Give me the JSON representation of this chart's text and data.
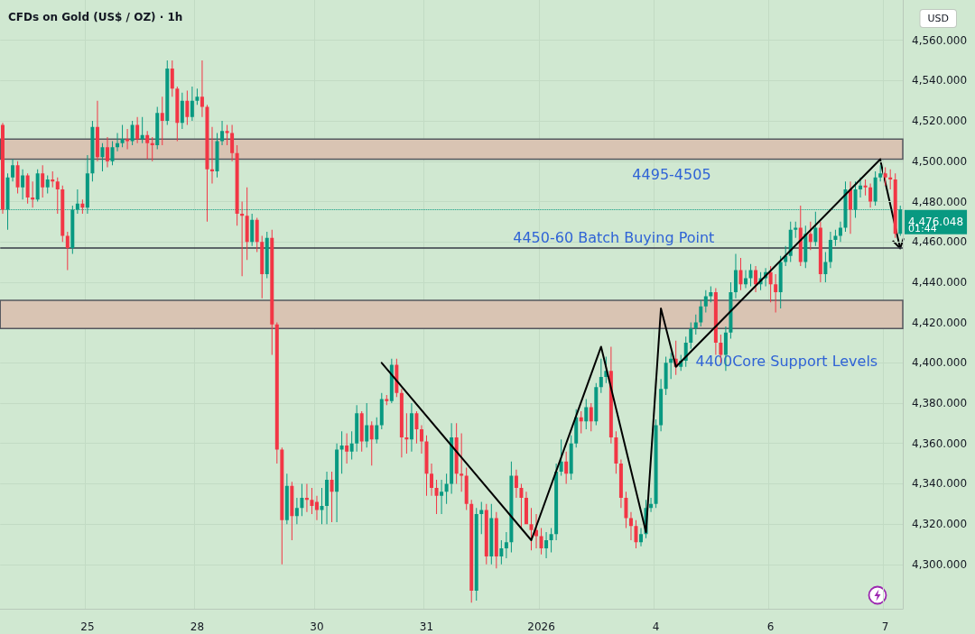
{
  "chart_data": {
    "type": "candlestick",
    "title": "CFDs on Gold (US$ / OZ) · 1h",
    "grid": true,
    "categories": [
      null,
      null,
      null,
      null,
      null,
      null,
      null,
      null,
      null,
      null,
      null,
      null,
      null,
      null,
      null,
      null,
      null,
      "25",
      null,
      null,
      null,
      null,
      null,
      null,
      null,
      null,
      null,
      null,
      null,
      null,
      null,
      null,
      null,
      null,
      null,
      null,
      null,
      null,
      null,
      "28",
      null,
      null,
      null,
      null,
      null,
      null,
      null,
      null,
      null,
      null,
      null,
      null,
      null,
      null,
      null,
      null,
      null,
      null,
      null,
      null,
      null,
      null,
      null,
      "30",
      null,
      null,
      null,
      null,
      null,
      null,
      null,
      null,
      null,
      null,
      null,
      null,
      null,
      null,
      null,
      null,
      null,
      null,
      null,
      null,
      null,
      "31",
      null,
      null,
      null,
      null,
      null,
      null,
      null,
      null,
      null,
      null,
      null,
      null,
      null,
      null,
      null,
      null,
      null,
      null,
      null,
      null,
      null,
      null,
      "2026",
      null,
      null,
      null,
      null,
      null,
      null,
      null,
      null,
      null,
      null,
      null,
      null,
      null,
      null,
      null,
      null,
      null,
      null,
      null,
      null,
      null,
      null,
      "4",
      null,
      null,
      null,
      null,
      null,
      null,
      null,
      null,
      null,
      null,
      null,
      null,
      null,
      null,
      null,
      null,
      null,
      null,
      null,
      null,
      null,
      null,
      "6",
      null,
      null,
      null,
      null,
      null,
      null,
      null,
      null,
      null,
      null,
      null,
      null,
      null,
      null,
      null,
      null,
      null,
      null,
      null,
      null,
      null,
      null,
      "7",
      null,
      null,
      null
    ],
    "ylim": [
      4278,
      4580
    ],
    "yticks": [
      {
        "value": 4300,
        "label": "4,300.000"
      },
      {
        "value": 4320,
        "label": "4,320.000"
      },
      {
        "value": 4340,
        "label": "4,340.000"
      },
      {
        "value": 4360,
        "label": "4,360.000"
      },
      {
        "value": 4380,
        "label": "4,380.000"
      },
      {
        "value": 4400,
        "label": "4,400.000"
      },
      {
        "value": 4420,
        "label": "4,420.000"
      },
      {
        "value": 4440,
        "label": "4,440.000"
      },
      {
        "value": 4460,
        "label": "4,460.000"
      },
      {
        "value": 4480,
        "label": "4,480.000"
      },
      {
        "value": 4500,
        "label": "4,500.000"
      },
      {
        "value": 4520,
        "label": "4,520.000"
      },
      {
        "value": 4540,
        "label": "4,540.000"
      },
      {
        "value": 4560,
        "label": "4,560.000"
      }
    ],
    "series": [
      {
        "ohlc": [
          [
            4518,
            4519,
            4474,
            4476
          ],
          [
            4476,
            4494,
            4466,
            4492
          ],
          [
            4492,
            4501,
            4490,
            4498
          ],
          [
            4498,
            4500,
            4484,
            4487
          ],
          [
            4487,
            4496,
            4481,
            4493
          ],
          [
            4493,
            4494,
            4479,
            4482
          ],
          [
            4482,
            4490,
            4477,
            4481
          ],
          [
            4481,
            4496,
            4480,
            4494
          ],
          [
            4494,
            4498,
            4482,
            4487
          ],
          [
            4487,
            4493,
            4484,
            4491
          ],
          [
            4491,
            4495,
            4487,
            4490
          ],
          [
            4490,
            4492,
            4474,
            4486
          ],
          [
            4486,
            4488,
            4460,
            4463
          ],
          [
            4463,
            4465,
            4446,
            4457
          ],
          [
            4457,
            4478,
            4454,
            4476
          ],
          [
            4476,
            4486,
            4474,
            4479
          ],
          [
            4479,
            4481,
            4474,
            4477
          ],
          [
            4477,
            4503,
            4474,
            4494
          ],
          [
            4494,
            4520,
            4490,
            4517
          ],
          [
            4517,
            4530,
            4500,
            4502
          ],
          [
            4502,
            4509,
            4495,
            4507
          ],
          [
            4507,
            4512,
            4497,
            4500
          ],
          [
            4500,
            4510,
            4498,
            4507
          ],
          [
            4507,
            4514,
            4505,
            4509
          ],
          [
            4509,
            4518,
            4507,
            4511
          ],
          [
            4511,
            4516,
            4506,
            4510
          ],
          [
            4510,
            4520,
            4508,
            4518
          ],
          [
            4518,
            4522,
            4509,
            4511
          ],
          [
            4511,
            4522,
            4509,
            4513
          ],
          [
            4513,
            4515,
            4501,
            4509
          ],
          [
            4509,
            4512,
            4500,
            4508
          ],
          [
            4508,
            4527,
            4506,
            4524
          ],
          [
            4524,
            4532,
            4508,
            4520
          ],
          [
            4520,
            4550,
            4518,
            4546
          ],
          [
            4546,
            4550,
            4532,
            4536
          ],
          [
            4536,
            4537,
            4510,
            4519
          ],
          [
            4519,
            4534,
            4516,
            4530
          ],
          [
            4530,
            4535,
            4518,
            4522
          ],
          [
            4522,
            4537,
            4520,
            4530
          ],
          [
            4530,
            4536,
            4528,
            4532
          ],
          [
            4532,
            4550,
            4522,
            4527
          ],
          [
            4527,
            4528,
            4470,
            4496
          ],
          [
            4496,
            4517,
            4489,
            4495
          ],
          [
            4495,
            4514,
            4492,
            4510
          ],
          [
            4510,
            4520,
            4508,
            4515
          ],
          [
            4515,
            4518,
            4508,
            4514
          ],
          [
            4514,
            4518,
            4500,
            4504
          ],
          [
            4504,
            4508,
            4468,
            4474
          ],
          [
            4474,
            4480,
            4443,
            4473
          ],
          [
            4473,
            4487,
            4451,
            4460
          ],
          [
            4460,
            4474,
            4458,
            4471
          ],
          [
            4471,
            4472,
            4455,
            4460
          ],
          [
            4460,
            4463,
            4432,
            4444
          ],
          [
            4444,
            4465,
            4442,
            4462
          ],
          [
            4462,
            4466,
            4404,
            4419
          ],
          [
            4419,
            4420,
            4350,
            4357
          ],
          [
            4357,
            4358,
            4300,
            4322
          ],
          [
            4322,
            4345,
            4320,
            4339
          ],
          [
            4339,
            4341,
            4312,
            4324
          ],
          [
            4324,
            4333,
            4320,
            4328
          ],
          [
            4328,
            4340,
            4324,
            4333
          ],
          [
            4333,
            4340,
            4326,
            4332
          ],
          [
            4332,
            4338,
            4325,
            4329
          ],
          [
            4331,
            4334,
            4322,
            4327
          ],
          [
            4327,
            4338,
            4320,
            4329
          ],
          [
            4329,
            4346,
            4320,
            4342
          ],
          [
            4342,
            4346,
            4321,
            4336
          ],
          [
            4336,
            4360,
            4321,
            4357
          ],
          [
            4357,
            4366,
            4345,
            4359
          ],
          [
            4359,
            4365,
            4350,
            4356
          ],
          [
            4356,
            4366,
            4352,
            4360
          ],
          [
            4360,
            4379,
            4356,
            4375
          ],
          [
            4375,
            4376,
            4356,
            4361
          ],
          [
            4361,
            4380,
            4358,
            4369
          ],
          [
            4369,
            4371,
            4349,
            4362
          ],
          [
            4362,
            4373,
            4360,
            4369
          ],
          [
            4369,
            4385,
            4367,
            4382
          ],
          [
            4382,
            4384,
            4379,
            4381
          ],
          [
            4381,
            4402,
            4380,
            4399
          ],
          [
            4399,
            4402,
            4383,
            4385
          ],
          [
            4385,
            4387,
            4353,
            4363
          ],
          [
            4363,
            4375,
            4355,
            4362
          ],
          [
            4362,
            4380,
            4356,
            4375
          ],
          [
            4375,
            4376,
            4360,
            4367
          ],
          [
            4367,
            4369,
            4355,
            4361
          ],
          [
            4361,
            4364,
            4334,
            4345
          ],
          [
            4345,
            4350,
            4334,
            4338
          ],
          [
            4338,
            4342,
            4325,
            4334
          ],
          [
            4334,
            4342,
            4325,
            4336
          ],
          [
            4336,
            4345,
            4330,
            4340
          ],
          [
            4340,
            4370,
            4335,
            4363
          ],
          [
            4363,
            4370,
            4340,
            4345
          ],
          [
            4345,
            4365,
            4336,
            4344
          ],
          [
            4344,
            4348,
            4327,
            4330
          ],
          [
            4330,
            4332,
            4281,
            4287
          ],
          [
            4287,
            4328,
            4282,
            4325
          ],
          [
            4325,
            4331,
            4315,
            4327
          ],
          [
            4327,
            4330,
            4300,
            4304
          ],
          [
            4304,
            4330,
            4300,
            4323
          ],
          [
            4323,
            4326,
            4298,
            4304
          ],
          [
            4304,
            4312,
            4300,
            4308
          ],
          [
            4308,
            4316,
            4303,
            4311
          ],
          [
            4311,
            4351,
            4306,
            4344
          ],
          [
            4344,
            4347,
            4333,
            4338
          ],
          [
            4338,
            4340,
            4318,
            4333
          ],
          [
            4333,
            4336,
            4320,
            4320
          ],
          [
            4320,
            4328,
            4307,
            4317
          ],
          [
            4317,
            4325,
            4308,
            4314
          ],
          [
            4314,
            4318,
            4305,
            4308
          ],
          [
            4308,
            4316,
            4303,
            4312
          ],
          [
            4312,
            4318,
            4306,
            4315
          ],
          [
            4315,
            4350,
            4312,
            4346
          ],
          [
            4346,
            4362,
            4344,
            4351
          ],
          [
            4351,
            4356,
            4340,
            4345
          ],
          [
            4345,
            4364,
            4342,
            4360
          ],
          [
            4360,
            4377,
            4358,
            4373
          ],
          [
            4373,
            4376,
            4365,
            4371
          ],
          [
            4371,
            4382,
            4367,
            4378
          ],
          [
            4378,
            4380,
            4366,
            4371
          ],
          [
            4371,
            4390,
            4369,
            4388
          ],
          [
            4388,
            4402,
            4385,
            4393
          ],
          [
            4393,
            4403,
            4390,
            4396
          ],
          [
            4396,
            4408,
            4360,
            4363
          ],
          [
            4363,
            4366,
            4345,
            4350
          ],
          [
            4350,
            4352,
            4328,
            4333
          ],
          [
            4333,
            4336,
            4318,
            4323
          ],
          [
            4323,
            4326,
            4312,
            4319
          ],
          [
            4319,
            4322,
            4308,
            4311
          ],
          [
            4311,
            4318,
            4309,
            4315
          ],
          [
            4315,
            4332,
            4313,
            4328
          ],
          [
            4328,
            4333,
            4326,
            4330
          ],
          [
            4330,
            4372,
            4328,
            4369
          ],
          [
            4369,
            4392,
            4366,
            4387
          ],
          [
            4387,
            4403,
            4384,
            4400
          ],
          [
            4400,
            4405,
            4392,
            4402
          ],
          [
            4402,
            4411,
            4394,
            4398
          ],
          [
            4398,
            4404,
            4396,
            4401
          ],
          [
            4401,
            4413,
            4398,
            4410
          ],
          [
            4410,
            4420,
            4407,
            4417
          ],
          [
            4417,
            4424,
            4414,
            4420
          ],
          [
            4420,
            4431,
            4418,
            4428
          ],
          [
            4428,
            4436,
            4425,
            4433
          ],
          [
            4433,
            4438,
            4430,
            4435
          ],
          [
            4435,
            4437,
            4404,
            4410
          ],
          [
            4410,
            4414,
            4400,
            4404
          ],
          [
            4404,
            4418,
            4396,
            4415
          ],
          [
            4415,
            4440,
            4412,
            4435
          ],
          [
            4435,
            4454,
            4432,
            4446
          ],
          [
            4446,
            4452,
            4436,
            4439
          ],
          [
            4439,
            4446,
            4437,
            4442
          ],
          [
            4442,
            4449,
            4438,
            4446
          ],
          [
            4446,
            4448,
            4435,
            4439
          ],
          [
            4439,
            4445,
            4436,
            4442
          ],
          [
            4442,
            4447,
            4438,
            4445
          ],
          [
            4445,
            4448,
            4430,
            4439
          ],
          [
            4439,
            4444,
            4425,
            4435
          ],
          [
            4435,
            4453,
            4427,
            4450
          ],
          [
            4450,
            4458,
            4448,
            4453
          ],
          [
            4453,
            4470,
            4450,
            4466
          ],
          [
            4466,
            4470,
            4462,
            4467
          ],
          [
            4467,
            4478,
            4448,
            4450
          ],
          [
            4450,
            4468,
            4447,
            4464
          ],
          [
            4464,
            4470,
            4456,
            4460
          ],
          [
            4460,
            4475,
            4458,
            4467
          ],
          [
            4467,
            4470,
            4440,
            4444
          ],
          [
            4444,
            4455,
            4440,
            4450
          ],
          [
            4450,
            4465,
            4447,
            4461
          ],
          [
            4461,
            4466,
            4458,
            4463
          ],
          [
            4463,
            4470,
            4460,
            4467
          ],
          [
            4467,
            4490,
            4465,
            4486
          ],
          [
            4486,
            4490,
            4464,
            4476
          ],
          [
            4476,
            4490,
            4472,
            4486
          ],
          [
            4486,
            4492,
            4482,
            4488
          ],
          [
            4488,
            4491,
            4483,
            4487
          ],
          [
            4487,
            4489,
            4477,
            4480
          ],
          [
            4480,
            4495,
            4478,
            4492
          ],
          [
            4492,
            4498,
            4490,
            4494
          ],
          [
            4494,
            4497,
            4488,
            4492
          ],
          [
            4492,
            4496,
            4486,
            4491
          ],
          [
            4491,
            4494,
            4462,
            4464
          ],
          [
            4464,
            4478,
            4463,
            4476.048
          ]
        ],
        "colors": [
          "#f23645",
          "#089981",
          "#089981",
          "#f23645",
          "#089981",
          "#f23645",
          "#f23645",
          "#089981",
          "#f23645",
          "#089981",
          "#f23645",
          "#f23645",
          "#f23645",
          "#f23645",
          "#089981",
          "#089981",
          "#f23645",
          "#089981",
          "#089981",
          "#f23645",
          "#089981",
          "#f23645",
          "#089981",
          "#089981",
          "#089981",
          "#f23645",
          "#089981",
          "#f23645",
          "#089981",
          "#f23645",
          "#f23645",
          "#089981",
          "#f23645",
          "#089981",
          "#f23645",
          "#f23645",
          "#089981",
          "#f23645",
          "#089981",
          "#089981",
          "#f23645",
          "#f23645",
          "#f23645",
          "#089981",
          "#089981",
          "#f23645",
          "#f23645",
          "#f23645",
          "#f23645",
          "#f23645",
          "#089981",
          "#f23645",
          "#f23645",
          "#089981",
          "#f23645",
          "#f23645",
          "#f23645",
          "#089981",
          "#f23645",
          "#089981",
          "#089981",
          "#f23645",
          "#f23645",
          "#f23645",
          "#089981",
          "#089981",
          "#f23645",
          "#089981",
          "#089981",
          "#f23645",
          "#089981",
          "#089981",
          "#f23645",
          "#089981",
          "#f23645",
          "#089981",
          "#089981",
          "#f23645",
          "#089981",
          "#f23645",
          "#f23645",
          "#f23645",
          "#089981",
          "#f23645",
          "#f23645",
          "#f23645",
          "#f23645",
          "#f23645",
          "#089981",
          "#089981",
          "#089981",
          "#f23645",
          "#f23645",
          "#f23645",
          "#f23645",
          "#089981",
          "#089981",
          "#f23645",
          "#089981",
          "#f23645",
          "#089981",
          "#089981",
          "#089981",
          "#f23645",
          "#f23645",
          "#f23645",
          "#f23645",
          "#f23645",
          "#f23645",
          "#089981",
          "#089981",
          "#089981",
          "#089981",
          "#f23645",
          "#089981",
          "#089981",
          "#f23645",
          "#089981",
          "#f23645",
          "#089981",
          "#089981",
          "#089981",
          "#f23645",
          "#f23645",
          "#f23645",
          "#f23645",
          "#f23645",
          "#f23645",
          "#089981",
          "#089981",
          "#089981",
          "#089981",
          "#089981",
          "#089981",
          "#089981",
          "#f23645",
          "#089981",
          "#089981",
          "#089981",
          "#089981",
          "#089981",
          "#089981",
          "#089981",
          "#f23645",
          "#f23645",
          "#089981",
          "#089981",
          "#089981",
          "#f23645",
          "#089981",
          "#089981",
          "#f23645",
          "#089981",
          "#089981",
          "#f23645",
          "#f23645",
          "#089981",
          "#089981",
          "#089981",
          "#089981",
          "#f23645",
          "#089981",
          "#f23645",
          "#089981",
          "#f23645",
          "#089981",
          "#089981",
          "#089981",
          "#089981",
          "#089981",
          "#f23645",
          "#089981",
          "#089981",
          "#f23645",
          "#f23645",
          "#089981",
          "#089981",
          "#f23645",
          "#f23645",
          "#f23645",
          "#089981"
        ]
      },
      {
        "type": "line",
        "color": "#000000",
        "marker": "none",
        "line_style": "solid",
        "values": [
          null,
          null,
          null,
          null,
          null,
          null,
          null,
          null,
          null,
          null,
          null,
          null,
          null,
          null,
          null,
          null,
          null,
          null,
          null,
          null,
          null,
          null,
          null,
          null,
          null,
          null,
          null,
          null,
          null,
          null,
          null,
          null,
          null,
          null,
          null,
          null,
          null,
          null,
          null,
          null,
          null,
          null,
          null,
          null,
          null,
          null,
          null,
          null,
          null,
          null,
          null,
          null,
          null,
          null,
          null,
          null,
          null,
          null,
          null,
          null,
          null,
          null,
          null,
          null,
          null,
          null,
          null,
          null,
          null,
          null,
          null,
          null,
          null,
          null,
          null,
          null,
          4400,
          null,
          null,
          null,
          null,
          null,
          null,
          null,
          null,
          null,
          null,
          null,
          null,
          null,
          null,
          null,
          null,
          null,
          null,
          null,
          null,
          null,
          null,
          null,
          null,
          null,
          null,
          null,
          null,
          null,
          4312,
          null,
          null,
          null,
          null,
          null,
          null,
          null,
          null,
          null,
          null,
          null,
          null,
          null,
          4408,
          null,
          null,
          null,
          null,
          null,
          null,
          null,
          null,
          4316,
          null,
          null,
          4427,
          null,
          null,
          4398,
          null,
          null,
          null,
          null,
          null,
          null,
          null,
          null,
          null,
          null,
          null,
          null,
          null,
          null,
          null,
          null,
          null,
          null,
          null,
          null,
          null,
          null,
          null,
          null,
          null,
          null,
          null,
          null,
          null,
          null,
          null,
          null,
          null,
          null,
          null,
          null,
          null,
          null,
          null,
          null,
          4501,
          null,
          null,
          null,
          null
        ]
      }
    ],
    "bands": [
      {
        "axis": "y",
        "from": 4501,
        "to": 4511,
        "label": "4495-4505",
        "color": "#d9c4b3"
      },
      {
        "axis": "y",
        "from": 4417,
        "to": 4431,
        "label": "4400Core Support Levels",
        "color": "#d9c4b3"
      }
    ],
    "ref_lines": [
      {
        "axis": "y",
        "value": 4476.048,
        "label": "4,476.048",
        "color": "#089981",
        "line_style": "dotted"
      },
      {
        "axis": "y",
        "value": 4457,
        "label": "4450-60 Batch Buying Point",
        "color": "#363a45",
        "line_style": "solid"
      }
    ],
    "annotations": [
      "USD",
      "01:44"
    ]
  }
}
